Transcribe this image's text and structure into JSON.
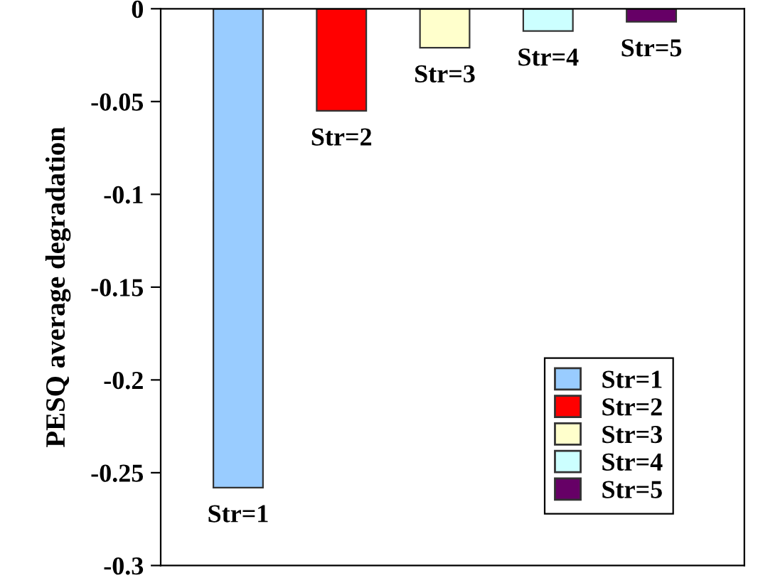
{
  "chart_data": {
    "type": "bar",
    "ylabel": "PESQ average degradation",
    "categories": [
      null,
      null,
      null,
      null,
      null
    ],
    "series": [
      {
        "name": "Str=1",
        "color": "#99ccff",
        "values": [
          -0.258,
          null,
          null,
          null,
          null
        ]
      },
      {
        "name": "Str=2",
        "color": "#ff0000",
        "values": [
          null,
          -0.055,
          null,
          null,
          null
        ]
      },
      {
        "name": "Str=3",
        "color": "#ffffcc",
        "values": [
          null,
          null,
          -0.021,
          null,
          null
        ]
      },
      {
        "name": "Str=4",
        "color": "#ccffff",
        "values": [
          null,
          null,
          null,
          -0.012,
          null
        ]
      },
      {
        "name": "Str=5",
        "color": "#660066",
        "values": [
          null,
          null,
          null,
          null,
          -0.007
        ]
      }
    ],
    "ylim": [
      -0.3,
      0
    ],
    "yticks": [
      -0.3,
      -0.25,
      -0.2,
      -0.15,
      -0.1,
      -0.05,
      0
    ],
    "grid": false,
    "legend": "bottom right",
    "tick_labels": "y"
  }
}
